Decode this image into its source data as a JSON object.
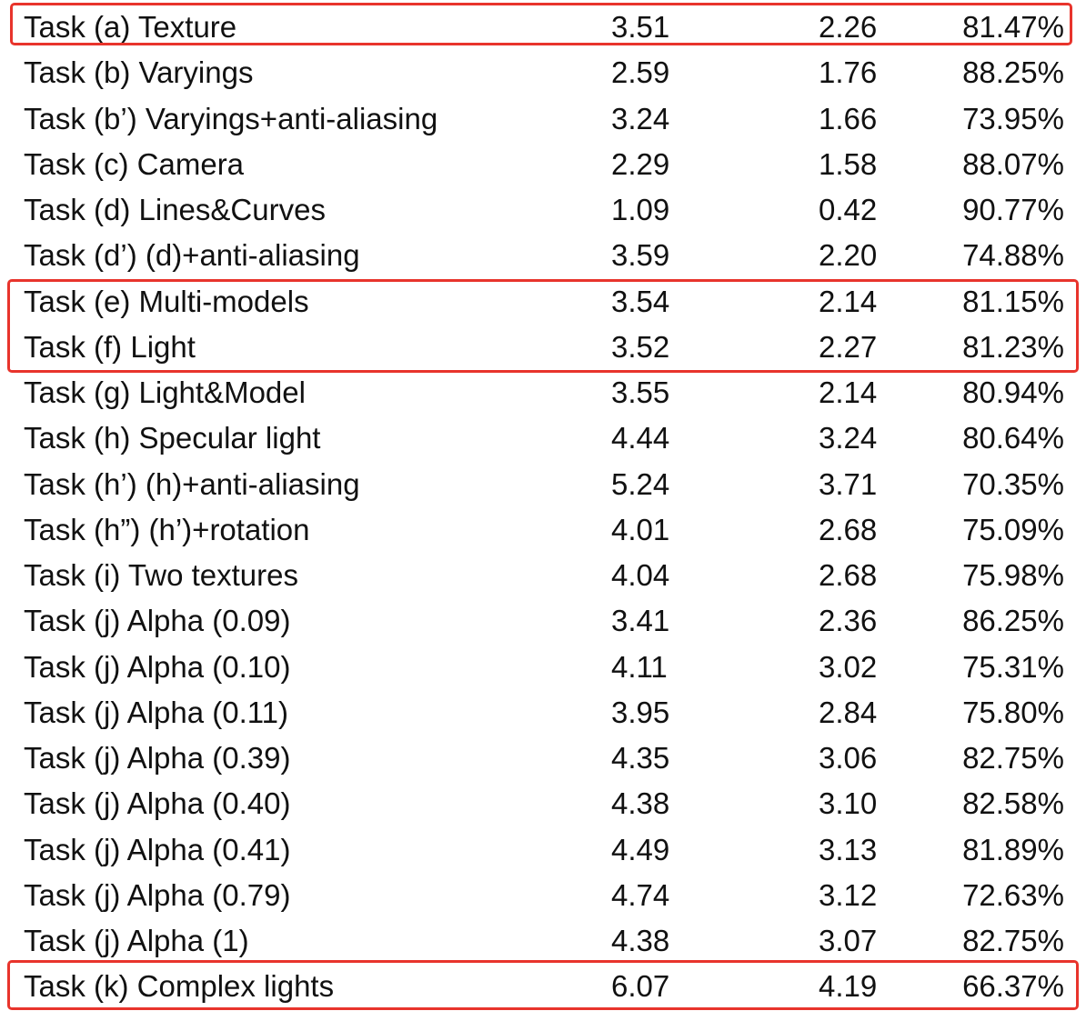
{
  "rows": [
    {
      "task": "Task (a) Texture",
      "v1": "3.51",
      "v2": "2.26",
      "pct": "81.47%"
    },
    {
      "task": "Task (b) Varyings",
      "v1": "2.59",
      "v2": "1.76",
      "pct": "88.25%"
    },
    {
      "task": "Task (b’) Varyings+anti-aliasing",
      "v1": "3.24",
      "v2": "1.66",
      "pct": "73.95%"
    },
    {
      "task": "Task (c) Camera",
      "v1": "2.29",
      "v2": "1.58",
      "pct": "88.07%"
    },
    {
      "task": "Task (d) Lines&Curves",
      "v1": "1.09",
      "v2": "0.42",
      "pct": "90.77%"
    },
    {
      "task": "Task (d’) (d)+anti-aliasing",
      "v1": "3.59",
      "v2": "2.20",
      "pct": "74.88%"
    },
    {
      "task": "Task (e) Multi-models",
      "v1": "3.54",
      "v2": "2.14",
      "pct": "81.15%"
    },
    {
      "task": "Task (f) Light",
      "v1": "3.52",
      "v2": "2.27",
      "pct": "81.23%"
    },
    {
      "task": "Task (g) Light&Model",
      "v1": "3.55",
      "v2": "2.14",
      "pct": "80.94%"
    },
    {
      "task": "Task (h) Specular light",
      "v1": "4.44",
      "v2": "3.24",
      "pct": "80.64%"
    },
    {
      "task": "Task (h’) (h)+anti-aliasing",
      "v1": "5.24",
      "v2": "3.71",
      "pct": "70.35%"
    },
    {
      "task": "Task (h”) (h’)+rotation",
      "v1": "4.01",
      "v2": "2.68",
      "pct": "75.09%"
    },
    {
      "task": "Task (i) Two textures",
      "v1": "4.04",
      "v2": "2.68",
      "pct": "75.98%"
    },
    {
      "task": "Task (j) Alpha (0.09)",
      "v1": "3.41",
      "v2": "2.36",
      "pct": "86.25%"
    },
    {
      "task": "Task (j) Alpha (0.10)",
      "v1": "4.11",
      "v2": "3.02",
      "pct": "75.31%"
    },
    {
      "task": "Task (j) Alpha (0.11)",
      "v1": "3.95",
      "v2": "2.84",
      "pct": "75.80%"
    },
    {
      "task": "Task (j) Alpha (0.39)",
      "v1": "4.35",
      "v2": "3.06",
      "pct": "82.75%"
    },
    {
      "task": "Task (j) Alpha (0.40)",
      "v1": "4.38",
      "v2": "3.10",
      "pct": "82.58%"
    },
    {
      "task": "Task (j) Alpha (0.41)",
      "v1": "4.49",
      "v2": "3.13",
      "pct": "81.89%"
    },
    {
      "task": "Task (j) Alpha (0.79)",
      "v1": "4.74",
      "v2": "3.12",
      "pct": "72.63%"
    },
    {
      "task": "Task (j) Alpha (1)",
      "v1": "4.38",
      "v2": "3.07",
      "pct": "82.75%"
    },
    {
      "task": "Task (k) Complex lights",
      "v1": "6.07",
      "v2": "4.19",
      "pct": "66.37%"
    }
  ],
  "highlight_color": "#e8342c"
}
